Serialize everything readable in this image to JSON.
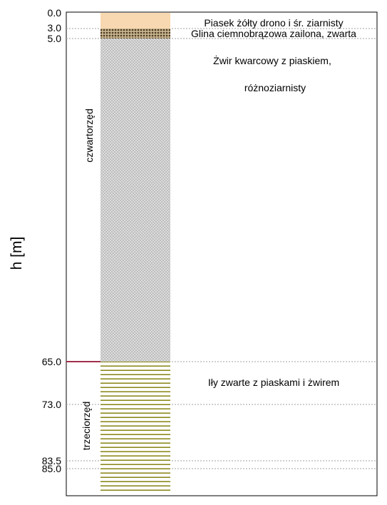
{
  "diagram": {
    "axis_title": "h [m]",
    "depth_ticks": [
      "0.0",
      "3.0",
      "5.0",
      "65.0",
      "73.0",
      "83.5",
      "85.0"
    ],
    "layers": [
      {
        "name": "sand",
        "top_label": "0.0",
        "bottom_label": "3.0",
        "description": "Piasek żółty drono i śr. ziarnisty",
        "fill": "#F8D8B0"
      },
      {
        "name": "clay",
        "top_label": "3.0",
        "bottom_label": "5.0",
        "description": "Glina ciemnobrązowa zailona, zwarta",
        "fill": "#8B7355"
      },
      {
        "name": "gravel",
        "top_label": "5.0",
        "bottom_label": "65.0",
        "description_lines": [
          "Żwir kwarcowy z piaskiem,",
          "różnoziarnisty"
        ],
        "fill": "#D8D8D8"
      },
      {
        "name": "silt",
        "top_label": "65.0",
        "bottom_label": "",
        "description": "Iły zwarte z piaskami i żwirem",
        "stripe_color": "#8B8B00"
      }
    ],
    "eras": [
      {
        "name": "czwartorzęd"
      },
      {
        "name": "trzeciorzęd"
      }
    ],
    "boundary_color": "#A0304A"
  }
}
